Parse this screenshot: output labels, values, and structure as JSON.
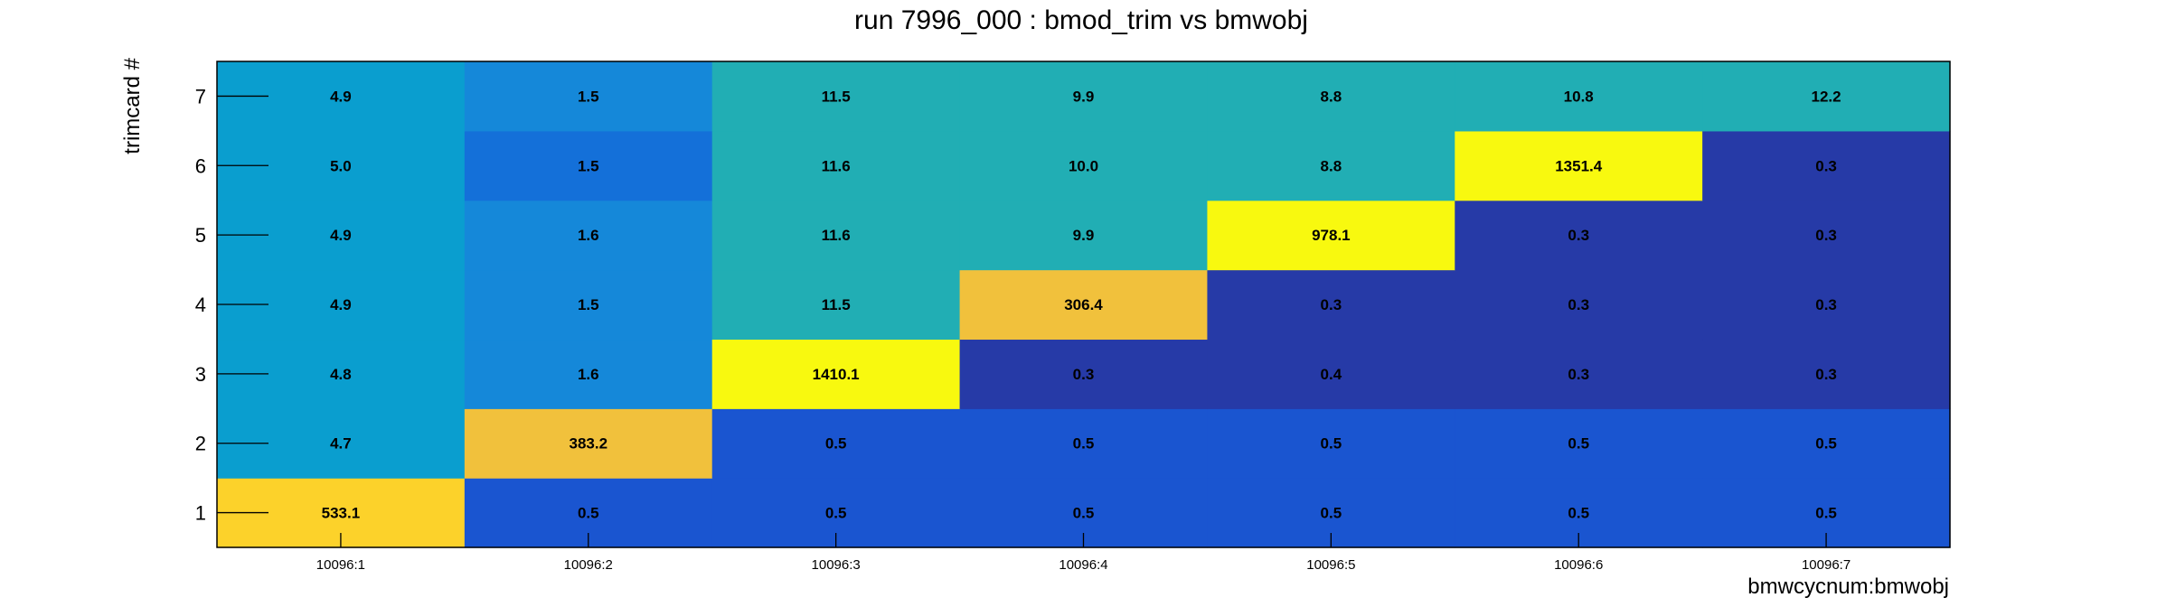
{
  "chart_data": {
    "type": "heatmap",
    "title": "run 7996_000 : bmod_trim vs bmwobj",
    "xlabel": "bmwcycnum:bmwobj",
    "ylabel": "trimcard #",
    "x_categories": [
      "10096:1",
      "10096:2",
      "10096:3",
      "10096:4",
      "10096:5",
      "10096:6",
      "10096:7"
    ],
    "y_categories": [
      "1",
      "2",
      "3",
      "4",
      "5",
      "6",
      "7"
    ],
    "values": [
      [
        "533.1",
        "0.5",
        "0.5",
        "0.5",
        "0.5",
        "0.5",
        "0.5"
      ],
      [
        "4.7",
        "383.2",
        "0.5",
        "0.5",
        "0.5",
        "0.5",
        "0.5"
      ],
      [
        "4.8",
        "1.6",
        "1410.1",
        "0.3",
        "0.4",
        "0.3",
        "0.3"
      ],
      [
        "4.9",
        "1.5",
        "11.5",
        "306.4",
        "0.3",
        "0.3",
        "0.3"
      ],
      [
        "4.9",
        "1.6",
        "11.6",
        "9.9",
        "978.1",
        "0.3",
        "0.3"
      ],
      [
        "5.0",
        "1.5",
        "11.6",
        "10.0",
        "8.8",
        "1351.4",
        "0.3"
      ],
      [
        "4.9",
        "1.5",
        "11.5",
        "9.9",
        "8.8",
        "10.8",
        "12.2"
      ]
    ],
    "colors": [
      [
        "#fcd22a",
        "#1a55d0",
        "#1a55d0",
        "#1a55d0",
        "#1a55d0",
        "#1a55d0",
        "#1a55d0"
      ],
      [
        "#0a9ecf",
        "#f1c13c",
        "#1a55d0",
        "#1a55d0",
        "#1a55d0",
        "#1a55d0",
        "#1a55d0"
      ],
      [
        "#0a9ecf",
        "#1588d9",
        "#f8f90f",
        "#263aa7",
        "#263aa7",
        "#263aa7",
        "#263aa7"
      ],
      [
        "#0a9ecf",
        "#1588d9",
        "#21aeb4",
        "#f1c13c",
        "#263aa7",
        "#263aa7",
        "#263aa7"
      ],
      [
        "#0a9ecf",
        "#1588d9",
        "#21aeb4",
        "#21aeb4",
        "#f8f90f",
        "#263aa7",
        "#263aa7"
      ],
      [
        "#0a9ecf",
        "#1470d9",
        "#21aeb4",
        "#21aeb4",
        "#21aeb4",
        "#f8f90f",
        "#263aa7"
      ],
      [
        "#0a9ecf",
        "#1588d9",
        "#21aeb4",
        "#21aeb4",
        "#21aeb4",
        "#21aeb4",
        "#21aeb4"
      ]
    ],
    "grid": false,
    "legend": "none"
  }
}
